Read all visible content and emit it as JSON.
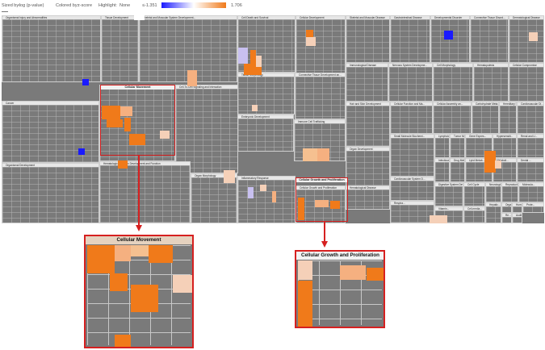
{
  "toolbar": {
    "sized_by_label": "Sized by:",
    "sized_by_value": "-log (p-value)",
    "colored_by_label": "Colored by:",
    "colored_by_value": "z-score",
    "highlight_label": "Highlight:",
    "highlight_value": "None",
    "scale_min": "≤-1.351",
    "scale_max": "1.706",
    "scale_colors": {
      "low": "#1a1aff",
      "mid": "#ffffff",
      "high": "#f07a1a"
    }
  },
  "categories": [
    {
      "label": "Organismal Injury and Abnormalities"
    },
    {
      "label": "Tissue Development"
    },
    {
      "label": "Skeletal and Muscular System Development..."
    },
    {
      "label": "Cell Death and Survival"
    },
    {
      "label": "Cellular Development"
    },
    {
      "label": "Skeletal and Muscular Disease"
    },
    {
      "label": "Gastrointestinal Disease"
    },
    {
      "label": "Developmental Disorder"
    },
    {
      "label": "Connective Tissue Disord..."
    },
    {
      "label": "Dermatological Disease"
    },
    {
      "label": "Cancer"
    },
    {
      "label": "Cellular Movement"
    },
    {
      "label": "Cell-To-Cell Signaling and Interaction"
    },
    {
      "label": "Tissue Morphology"
    },
    {
      "label": "Connective Tissue Development an..."
    },
    {
      "label": "Immunological Disease"
    },
    {
      "label": "Nervous System Developme..."
    },
    {
      "label": "Cell Morphology"
    },
    {
      "label": "Hematopoiesis"
    },
    {
      "label": "Cellular Compromise"
    },
    {
      "label": "Hair and Skin Development"
    },
    {
      "label": "Cellular Function and Ma..."
    },
    {
      "label": "Cellular Assembly an..."
    },
    {
      "label": "Carbohydrate Meta..."
    },
    {
      "label": "Hereditary Disor..."
    },
    {
      "label": "Cardiovascular Di..."
    },
    {
      "label": "Embryonic Development"
    },
    {
      "label": "Immune Cell Trafficking"
    },
    {
      "label": "Small Molecule Biochemi..."
    },
    {
      "label": "Lymphoid Tissue S..."
    },
    {
      "label": "Tumor Morph..."
    },
    {
      "label": "Gene Expres..."
    },
    {
      "label": "Hypersensiti..."
    },
    {
      "label": "Renal and U..."
    },
    {
      "label": "Organ Development"
    },
    {
      "label": "Organismal Development"
    },
    {
      "label": "Hematological System Development and Function"
    },
    {
      "label": "Organ Morphology"
    },
    {
      "label": "Inflammatory Response"
    },
    {
      "label": "Cellular Growth and Proliferation"
    },
    {
      "label": "Hematological Disease"
    },
    {
      "label": "Cardiovascular System D..."
    },
    {
      "label": "Infectious Diseases"
    },
    {
      "label": "Drug Metab..."
    },
    {
      "label": "Lipid Metab..."
    },
    {
      "label": "Metaboli..."
    },
    {
      "label": "Dental ..."
    },
    {
      "label": "Respira..."
    },
    {
      "label": "Digestive System Develo..."
    },
    {
      "label": "Cell Cycle"
    },
    {
      "label": "Neurologica..."
    },
    {
      "label": "Reproducti..."
    },
    {
      "label": "Molecula..."
    },
    {
      "label": "Hepatic..."
    },
    {
      "label": "Organismal ..."
    },
    {
      "label": "Humor..."
    },
    {
      "label": "Prote..."
    },
    {
      "label": "Re..."
    },
    {
      "label": "Auditor..."
    },
    {
      "label": "Vitamin..."
    },
    {
      "label": "Cell-media..."
    },
    {
      "label": "Inherited Disease"
    },
    {
      "label": "Reproducti..."
    }
  ],
  "zoom_panels": [
    {
      "title": "Cellular Movement"
    },
    {
      "title": "Cellular Growth and Proliferation"
    }
  ]
}
